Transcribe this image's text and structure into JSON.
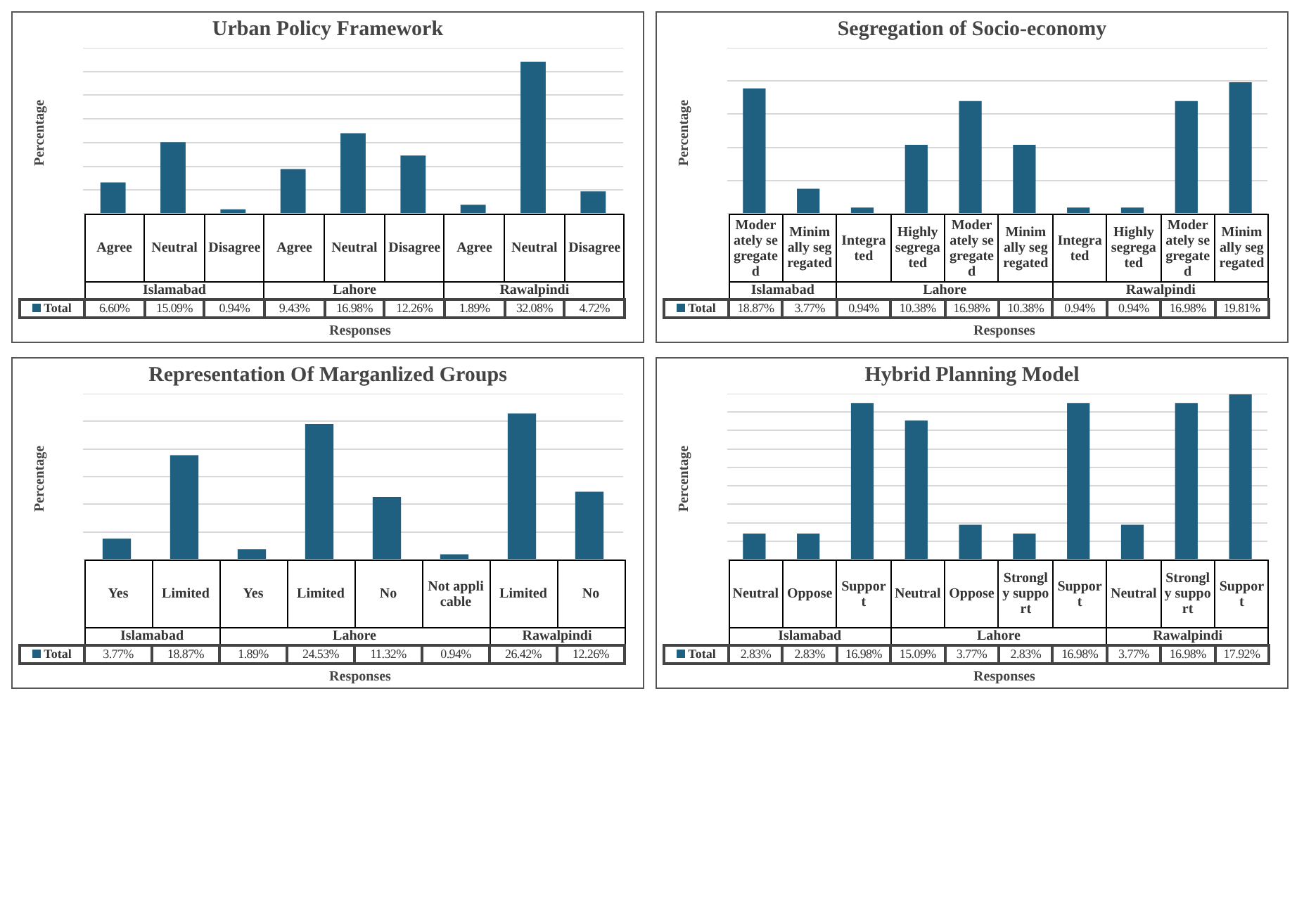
{
  "chart_data": [
    {
      "type": "bar",
      "title": "Urban Policy Framework",
      "ylabel": "Percentage",
      "xlabel": "Responses",
      "categories": [
        "Agree",
        "Neutral",
        "Disagree",
        "Agree",
        "Neutral",
        "Disagree",
        "Agree",
        "Neutral",
        "Disagree"
      ],
      "series": [
        {
          "name": "Total",
          "color": "#1f5f7f",
          "values": [
            6.6,
            15.09,
            0.94,
            9.43,
            16.98,
            12.26,
            1.89,
            32.08,
            4.72
          ],
          "value_labels": [
            "6.60%",
            "15.09%",
            "0.94%",
            "9.43%",
            "16.98%",
            "12.26%",
            "1.89%",
            "32.08%",
            "4.72%"
          ]
        }
      ],
      "annotations": [
        "Islamabad",
        "Lahore",
        "Rawalpindi"
      ],
      "ylim": [
        0,
        35
      ],
      "yticks": [
        {
          "value": 0,
          "label": null
        },
        {
          "value": 5,
          "label": null
        },
        {
          "value": 10,
          "label": null
        },
        {
          "value": 15,
          "label": null
        },
        {
          "value": 20,
          "label": null
        },
        {
          "value": 25,
          "label": null
        },
        {
          "value": 30,
          "label": null
        },
        {
          "value": 35,
          "label": null
        }
      ],
      "grid": "y",
      "legend": "bottom"
    },
    {
      "type": "bar",
      "title": "Segregation of Socio-economy",
      "ylabel": "Percentage",
      "xlabel": "Responses",
      "categories": [
        "Moderately segregated",
        "Minimally segregated",
        "Integrated",
        "Highly segregated",
        "Moderately segregated",
        "Minimally segregated",
        "Integrated",
        "Highly segregated",
        "Moderately segregated",
        "Minimally segregated"
      ],
      "series": [
        {
          "name": "Total",
          "color": "#1f5f7f",
          "values": [
            18.87,
            3.77,
            0.94,
            10.38,
            16.98,
            10.38,
            0.94,
            0.94,
            16.98,
            19.81
          ],
          "value_labels": [
            "18.87%",
            "3.77%",
            "0.94%",
            "10.38%",
            "16.98%",
            "10.38%",
            "0.94%",
            "0.94%",
            "16.98%",
            "19.81%"
          ]
        }
      ],
      "annotations": [
        "Islamabad",
        "Lahore",
        "Rawalpindi"
      ],
      "ylim": [
        0,
        25
      ],
      "yticks": [
        {
          "value": 0,
          "label": null
        },
        {
          "value": 5,
          "label": null
        },
        {
          "value": 10,
          "label": null
        },
        {
          "value": 15,
          "label": null
        },
        {
          "value": 20,
          "label": null
        },
        {
          "value": 25,
          "label": null
        }
      ],
      "grid": "y",
      "legend": "bottom"
    },
    {
      "type": "bar",
      "title": "Representation Of Marganlized Groups",
      "ylabel": "Percentage",
      "xlabel": "Responses",
      "categories": [
        "Yes",
        "Limited",
        "Yes",
        "Limited",
        "No",
        "Not applicable",
        "Limited",
        "No"
      ],
      "series": [
        {
          "name": "Total",
          "color": "#1f5f7f",
          "values": [
            3.77,
            18.87,
            1.89,
            24.53,
            11.32,
            0.94,
            26.42,
            12.26
          ],
          "value_labels": [
            "3.77%",
            "18.87%",
            "1.89%",
            "24.53%",
            "11.32%",
            "0.94%",
            "26.42%",
            "12.26%"
          ]
        }
      ],
      "annotations": [
        "Islamabad",
        "Lahore",
        "Rawalpindi"
      ],
      "ylim": [
        0,
        30
      ],
      "yticks": [
        {
          "value": 0,
          "label": null
        },
        {
          "value": 5,
          "label": null
        },
        {
          "value": 10,
          "label": null
        },
        {
          "value": 15,
          "label": null
        },
        {
          "value": 20,
          "label": null
        },
        {
          "value": 25,
          "label": null
        },
        {
          "value": 30,
          "label": null
        }
      ],
      "grid": "y",
      "legend": "bottom"
    },
    {
      "type": "bar",
      "title": "Hybrid Planning Model",
      "ylabel": "Percentage",
      "xlabel": "Responses",
      "categories": [
        "Neutral",
        "Oppose",
        "Support",
        "Neutral",
        "Oppose",
        "Strongly support",
        "Support",
        "Neutral",
        "Strongly support",
        "Support"
      ],
      "series": [
        {
          "name": "Total",
          "color": "#1f5f7f",
          "values": [
            2.83,
            2.83,
            16.98,
            15.09,
            3.77,
            2.83,
            16.98,
            3.77,
            16.98,
            17.92
          ],
          "value_labels": [
            "2.83%",
            "2.83%",
            "16.98%",
            "15.09%",
            "3.77%",
            "2.83%",
            "16.98%",
            "3.77%",
            "16.98%",
            "17.92%"
          ]
        }
      ],
      "annotations": [
        "Islamabad",
        "Lahore",
        "Rawalpindi"
      ],
      "ylim": [
        0,
        18
      ],
      "yticks": [
        {
          "value": 0,
          "label": null
        },
        {
          "value": 2,
          "label": null
        },
        {
          "value": 4,
          "label": null
        },
        {
          "value": 6,
          "label": null
        },
        {
          "value": 8,
          "label": null
        },
        {
          "value": 10,
          "label": null
        },
        {
          "value": 12,
          "label": null
        },
        {
          "value": 14,
          "label": null
        },
        {
          "value": 16,
          "label": null
        },
        {
          "value": 18,
          "label": null
        }
      ],
      "grid": "y",
      "legend": "bottom"
    }
  ]
}
